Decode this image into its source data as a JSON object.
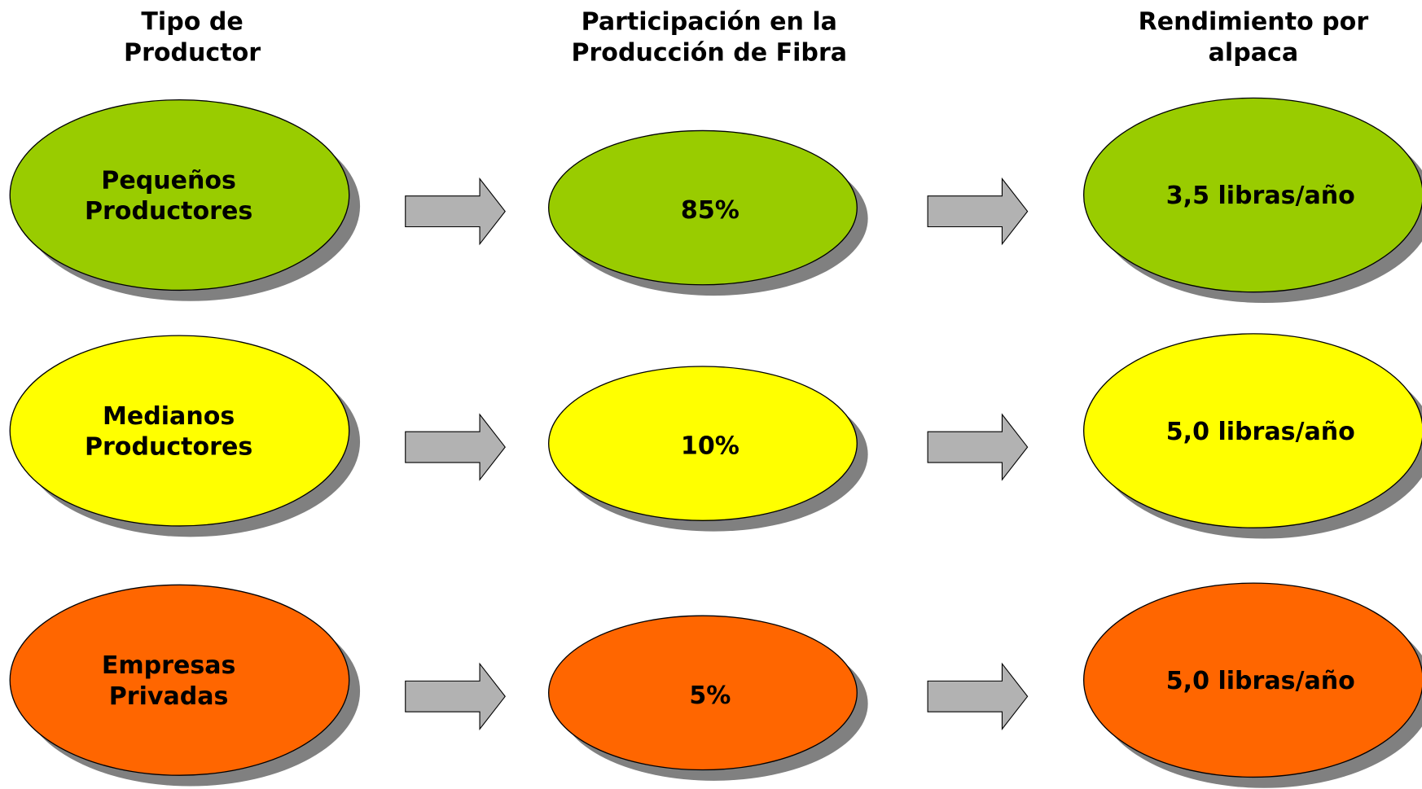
{
  "headers": [
    [
      "Tipo de",
      "Productor"
    ],
    [
      "Participación en la",
      "Producción de Fibra"
    ],
    [
      "Rendimiento por",
      "alpaca"
    ]
  ],
  "rows": [
    {
      "type": [
        "Pequeños",
        "Productores"
      ],
      "share": "85%",
      "yield": "3,5 libras/año",
      "color": "#99cc00"
    },
    {
      "type": [
        "Medianos",
        "Productores"
      ],
      "share": "10%",
      "yield": "5,0 libras/año",
      "color": "#ffff00"
    },
    {
      "type": [
        "Empresas",
        "Privadas"
      ],
      "share": "5%",
      "yield": "5,0 libras/año",
      "color": "#ff6600"
    }
  ]
}
